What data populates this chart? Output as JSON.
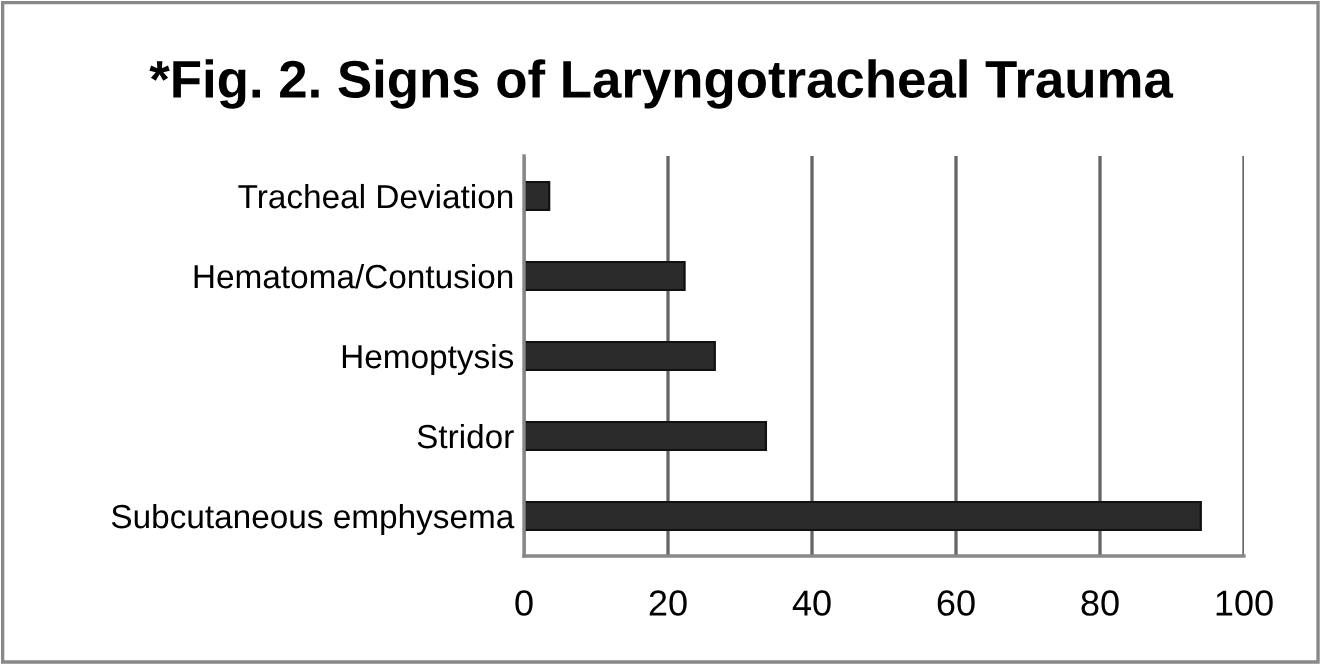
{
  "chart_data": {
    "type": "bar",
    "orientation": "horizontal",
    "title": "*Fig. 2. Signs of Laryngotracheal Trauma",
    "categories": [
      "Tracheal Deviation",
      "Hematoma/Contusion",
      "Hemoptysis",
      "Stridor",
      "Subcutaneous emphysema"
    ],
    "values": [
      3.5,
      22.3,
      26.5,
      33.6,
      94.0
    ],
    "color": "#2b2b2b",
    "xlim": [
      0,
      100
    ],
    "xticks": [
      0,
      20,
      40,
      60,
      80,
      100
    ],
    "grid": "x"
  }
}
